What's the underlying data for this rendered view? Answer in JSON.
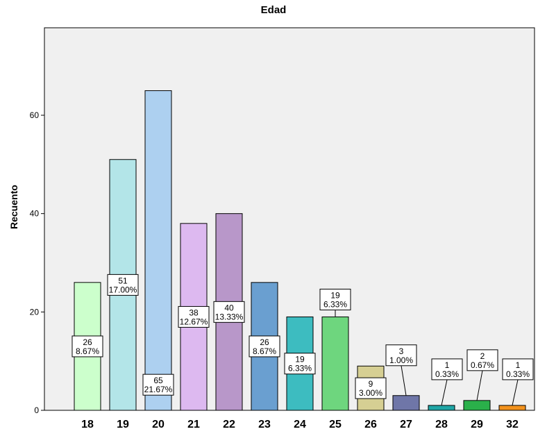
{
  "chart_data": {
    "type": "bar",
    "title": "Edad",
    "xlabel": "",
    "ylabel": "Recuento",
    "ylim": [
      0,
      80
    ],
    "yticks": [
      0,
      20,
      40,
      60
    ],
    "grid": false,
    "categories": [
      "18",
      "19",
      "20",
      "21",
      "22",
      "23",
      "24",
      "25",
      "26",
      "27",
      "28",
      "29",
      "32"
    ],
    "values": [
      26,
      51,
      65,
      38,
      40,
      26,
      19,
      19,
      9,
      3,
      1,
      2,
      1
    ],
    "percent_labels": [
      "8.67%",
      "17.00%",
      "21.67%",
      "12.67%",
      "13.33%",
      "8.67%",
      "6.33%",
      "6.33%",
      "3.00%",
      "1.00%",
      "0.33%",
      "0.67%",
      "0.33%"
    ],
    "colors": [
      "#ccffcc",
      "#b3e5e8",
      "#add0f0",
      "#ddb9f0",
      "#b897c9",
      "#6a9fd0",
      "#3dbcc0",
      "#6ed67e",
      "#d6cf93",
      "#6f76a8",
      "#1fa5a5",
      "#2ab04a",
      "#f2921d"
    ]
  }
}
